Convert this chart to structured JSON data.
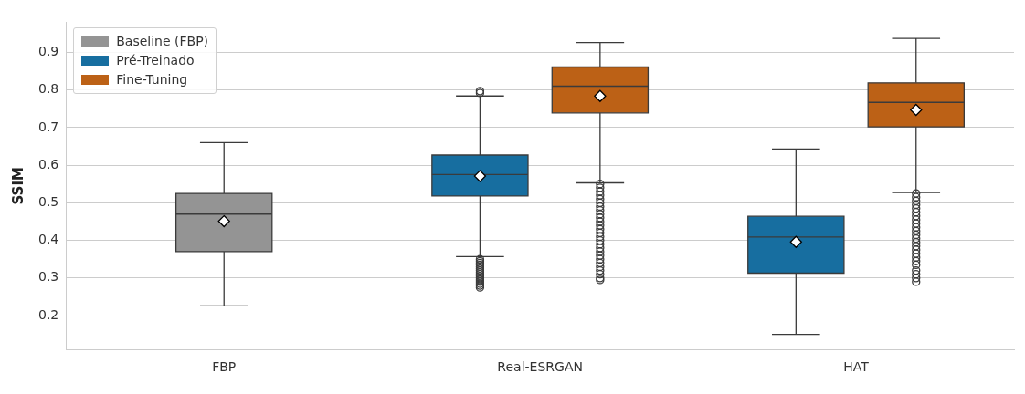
{
  "chart_data": {
    "type": "box",
    "ylabel": "SSIM",
    "categories": [
      "FBP",
      "Real-ESRGAN",
      "HAT"
    ],
    "ylim": [
      0.11,
      0.98
    ],
    "yticks": [
      0.2,
      0.3,
      0.4,
      0.5,
      0.6,
      0.7,
      0.8,
      0.9
    ],
    "grid": "y",
    "legend": "top left",
    "series": [
      {
        "name": "Baseline (FBP)",
        "color": "#949494",
        "boxes": [
          {
            "low": 0.226,
            "q1": 0.37,
            "median": 0.47,
            "q3": 0.525,
            "high": 0.66,
            "mean": 0.451
          },
          null,
          null
        ]
      },
      {
        "name": "Pré-Treinado",
        "color": "#176ea0",
        "boxes": [
          null,
          {
            "low": 0.357,
            "q1": 0.518,
            "median": 0.575,
            "q3": 0.627,
            "high": 0.784,
            "mean": 0.571,
            "outliers": [
              0.797,
              0.792,
              0.35,
              0.345,
              0.34,
              0.335,
              0.33,
              0.325,
              0.32,
              0.315,
              0.31,
              0.305,
              0.3,
              0.295,
              0.29,
              0.285,
              0.28,
              0.275
            ]
          },
          {
            "low": 0.15,
            "q1": 0.313,
            "median": 0.409,
            "q3": 0.464,
            "high": 0.643,
            "mean": 0.396
          }
        ]
      },
      {
        "name": "Fine-Tuning",
        "color": "#bc6116",
        "boxes": [
          null,
          {
            "low": 0.553,
            "q1": 0.739,
            "median": 0.81,
            "q3": 0.861,
            "high": 0.926,
            "mean": 0.784,
            "outliers": [
              0.55,
              0.54,
              0.53,
              0.52,
              0.51,
              0.5,
              0.49,
              0.48,
              0.47,
              0.46,
              0.45,
              0.44,
              0.43,
              0.42,
              0.41,
              0.4,
              0.39,
              0.38,
              0.37,
              0.36,
              0.35,
              0.34,
              0.33,
              0.32,
              0.31,
              0.3,
              0.295
            ]
          },
          {
            "low": 0.527,
            "q1": 0.702,
            "median": 0.767,
            "q3": 0.819,
            "high": 0.937,
            "mean": 0.747,
            "outliers": [
              0.525,
              0.515,
              0.505,
              0.495,
              0.485,
              0.475,
              0.465,
              0.455,
              0.445,
              0.435,
              0.425,
              0.415,
              0.405,
              0.395,
              0.385,
              0.375,
              0.365,
              0.355,
              0.345,
              0.335,
              0.32,
              0.31,
              0.3,
              0.29
            ]
          }
        ]
      }
    ]
  }
}
